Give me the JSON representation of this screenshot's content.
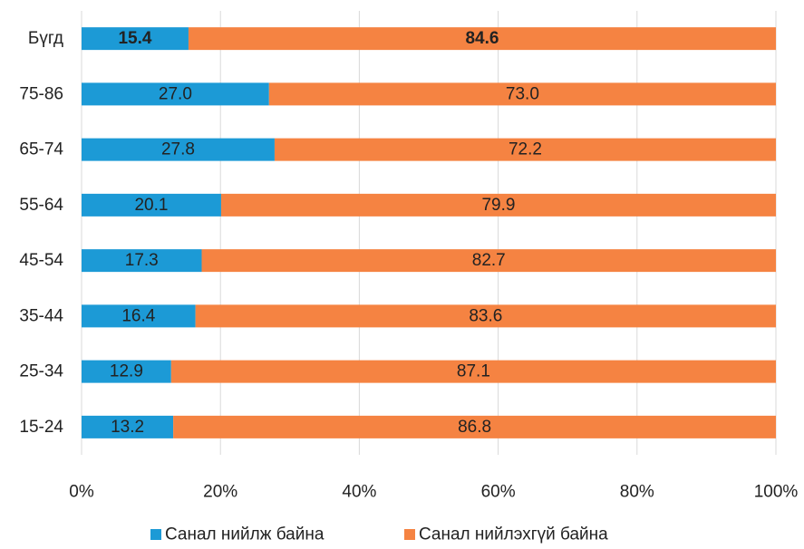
{
  "chart_data": {
    "type": "bar",
    "orientation": "horizontal",
    "stacked": true,
    "percent": true,
    "categories": [
      "Бүгд",
      "75-86",
      "65-74",
      "55-64",
      "45-54",
      "35-44",
      "25-34",
      "15-24"
    ],
    "series": [
      {
        "name": "Санал нийлж байна",
        "color": "#1c9ad6",
        "values": [
          15.4,
          27.0,
          27.8,
          20.1,
          17.3,
          16.4,
          12.9,
          13.2
        ],
        "labels": [
          "15.4",
          "27.0",
          "27.8",
          "20.1",
          "17.3",
          "16.4",
          "12.9",
          "13.2"
        ]
      },
      {
        "name": "Санал нийлэхгүй байна",
        "color": "#f58342",
        "values": [
          84.6,
          73.0,
          72.2,
          79.9,
          82.7,
          83.6,
          87.1,
          86.8
        ],
        "labels": [
          "84.6",
          "73.0",
          "72.2",
          "79.9",
          "82.7",
          "83.6",
          "87.1",
          "86.8"
        ]
      }
    ],
    "bold_categories": [
      "Бүгд"
    ],
    "xlim": [
      0,
      100
    ],
    "xticks": [
      "0%",
      "20%",
      "40%",
      "60%",
      "80%",
      "100%"
    ],
    "grid": true,
    "legend_position": "bottom"
  }
}
